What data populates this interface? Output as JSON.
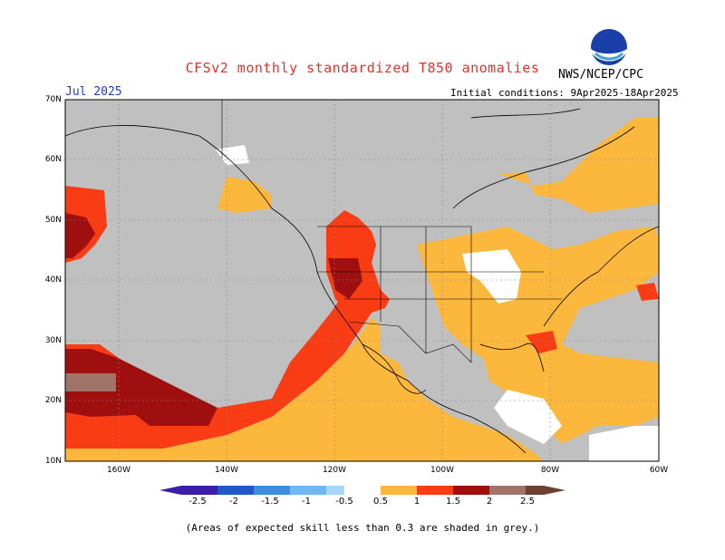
{
  "header": {
    "title": "CFSv2 monthly standardized T850 anomalies",
    "source": "NWS/NCEP/CPC",
    "logo_text": "NOAA",
    "target_month": "Jul 2025",
    "initial_conditions": "Initial conditions: 9Apr2025-18Apr2025"
  },
  "map": {
    "ocean_land_mask_color": "#c0c0c0",
    "grid_lat_labels": [
      "70N",
      "60N",
      "50N",
      "40N",
      "30N",
      "20N",
      "10N"
    ],
    "grid_lon_labels": [
      "160W",
      "140W",
      "120W",
      "100W",
      "80W",
      "60W"
    ],
    "lat_range": [
      10,
      70
    ],
    "lon_range": [
      -170,
      -60
    ]
  },
  "colorbar": {
    "ticks": [
      "-2.5",
      "-2",
      "-1.5",
      "-1",
      "-0.5",
      "0.5",
      "1",
      "1.5",
      "2",
      "2.5"
    ],
    "colors": [
      "#3b1fa8",
      "#2357c8",
      "#3d8ee0",
      "#6fb8f2",
      "#a5d8fa",
      "#ffffff",
      "#fcb83c",
      "#fa3c14",
      "#a00f0f",
      "#a07468",
      "#6e4032"
    ]
  },
  "footer": {
    "note": "(Areas of expected skill less than 0.3 are shaded in grey.)"
  }
}
